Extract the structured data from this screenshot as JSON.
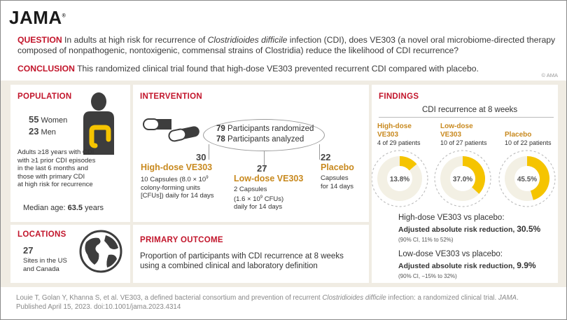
{
  "header": {
    "logo": "JAMA",
    "question_label": "QUESTION",
    "question_text_1": " In adults at high risk for recurrence of ",
    "question_italic": "Clostridioides difficile",
    "question_text_2": " infection (CDI), does VE303 (a novel oral microbiome-directed therapy composed of nonpathogenic, nontoxigenic, commensal strains of Clostridia) reduce the likelihood of CDI recurrence?",
    "conclusion_label": "CONCLUSION",
    "conclusion_text": " This randomized clinical trial found that high-dose VE303 prevented recurrent CDI compared with placebo.",
    "copyright": "© AMA"
  },
  "population": {
    "title": "POPULATION",
    "women_count": "55",
    "women_label": " Women",
    "men_count": "23",
    "men_label": " Men",
    "criteria_lines": [
      "Adults ≥18 years with CDI",
      "with ≥1 prior CDI episodes",
      "in the last 6 months and",
      "those with primary CDI",
      "at high risk for recurrence"
    ],
    "median_label": "Median age: ",
    "median_value": "63.5",
    "median_unit": " years"
  },
  "locations": {
    "title": "LOCATIONS",
    "count": "27",
    "lines": [
      "Sites in the US",
      "and Canada"
    ]
  },
  "intervention": {
    "title": "INTERVENTION",
    "randomized_count": "79",
    "randomized_label": " Participants randomized",
    "analyzed_count": "78",
    "analyzed_label": " Participants analyzed",
    "arms": [
      {
        "count": "30",
        "name": "High-dose VE303",
        "line1_pre": "10 Capsules (8.0 × 10",
        "line1_sup": "9",
        "line2": "colony-forming units",
        "line3": "[CFUs]) daily for 14 days"
      },
      {
        "count": "27",
        "name": "Low-dose VE303",
        "line1": "2 Capsules",
        "line2_pre": "(1.6 × 10",
        "line2_sup": "9",
        "line2_post": " CFUs)",
        "line3": "daily for 14 days"
      },
      {
        "count": "22",
        "name": "Placebo",
        "line1": "Capsules",
        "line2": "for 14 days"
      }
    ]
  },
  "primary_outcome": {
    "title": "PRIMARY OUTCOME",
    "lines": [
      "Proportion of participants with CDI recurrence at 8 weeks",
      "using a combined clinical and laboratory definition"
    ]
  },
  "findings": {
    "title": "FINDINGS",
    "subtitle": "CDI recurrence at 8 weeks",
    "groups": [
      {
        "name_1": "High-dose",
        "name_2": "VE303",
        "patients": "4 of 29 patients",
        "percent_label": "13.8%",
        "percent": 13.8
      },
      {
        "name_1": "Low-dose",
        "name_2": "VE303",
        "patients": "10 of 27 patients",
        "percent_label": "37.0%",
        "percent": 37.0
      },
      {
        "name_1": "Placebo",
        "name_2": "",
        "patients": "10 of 22 patients",
        "percent_label": "45.5%",
        "percent": 45.5
      }
    ],
    "comparisons": [
      {
        "title": "High-dose VE303 vs placebo:",
        "label": "Adjusted absolute risk reduction, ",
        "value": "30.5%",
        "ci": "(90% CI, 11% to 52%)"
      },
      {
        "title": "Low-dose VE303 vs placebo:",
        "label": "Adjusted absolute risk reduction, ",
        "value": "9.9%",
        "ci": "(90% CI, −15% to 32%)"
      }
    ],
    "colors": {
      "filled": "#f5c400",
      "empty": "#f3f0e4",
      "dash": "#b5b5b5"
    }
  },
  "footer": {
    "text_1": "Louie T, Golan Y, Khanna S, et al. VE303, a defined bacterial consortium and prevention of recurrent ",
    "italic_1": "Clostridioides difficile",
    "text_2": " infection: a randomized clinical trial. ",
    "italic_2": "JAMA",
    "text_3": ".",
    "line2": "Published April 15, 2023. doi:10.1001/jama.2023.4314"
  }
}
